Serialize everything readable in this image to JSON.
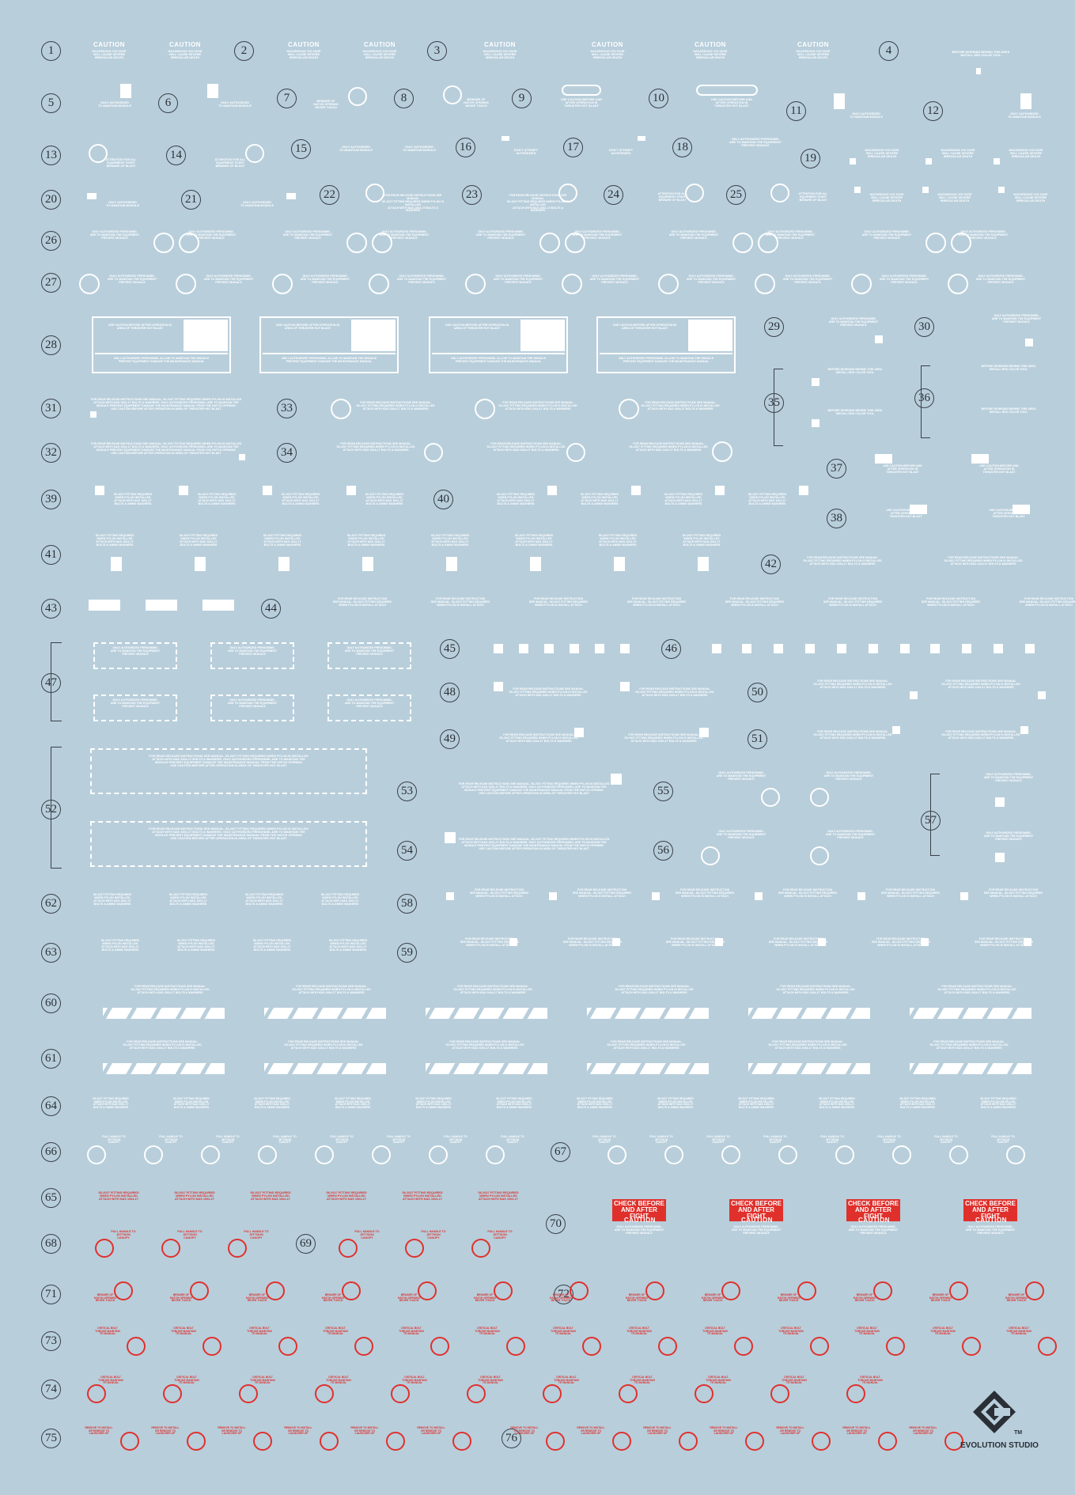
{
  "sheet": {
    "background": "#b8cedb",
    "print_color": "#ffffff",
    "red_color": "#e0302c",
    "ink_color": "#2a2f35"
  },
  "numbers": [
    "1",
    "2",
    "3",
    "4",
    "5",
    "6",
    "7",
    "8",
    "9",
    "10",
    "11",
    "12",
    "13",
    "14",
    "15",
    "16",
    "17",
    "18",
    "19",
    "20",
    "21",
    "22",
    "23",
    "24",
    "25",
    "26",
    "27",
    "28",
    "29",
    "30",
    "31",
    "32",
    "33",
    "34",
    "35",
    "36",
    "37",
    "38",
    "39",
    "40",
    "41",
    "42",
    "43",
    "44",
    "45",
    "46",
    "47",
    "48",
    "49",
    "50",
    "51",
    "52",
    "53",
    "54",
    "55",
    "56",
    "57",
    "58",
    "59",
    "60",
    "61",
    "62",
    "63",
    "64",
    "65",
    "66",
    "67",
    "68",
    "69",
    "70",
    "71",
    "72",
    "73",
    "74",
    "75",
    "76"
  ],
  "texts": {
    "caution": "CAUTION",
    "hazard_voltage": "HAZARDOUS VOLTAGE\nWILL CAUSE SEVERE\nIRREGULAR DEATH",
    "only_authorized_short": "ONLY AUTHORIZED\nTO MAINTAIN MODULE",
    "dont_attempt": "DON'T ATTEMPT\nAUTHORIZED",
    "beware_hatch": "BEWARE OF\nHATCH OPENING\nNEVER TOUCH",
    "attention_staff": "ATTENTION FOR ALL\nEQUIPMENT STAFF\nBEWARE OF BLAST",
    "use_caution": "USE CAUTION BEFORE AND\nAFTER OPERATION IN\nTHRUSTER HOT BLAST",
    "only_authorized_long": "ONLY AUTHORIZED PERSONNEL\nARE TO MAINTAIN THE EQUIPMENT\nPREVENT MODULE",
    "before_working": "BEFORE WORKING BEHIND THIS AREA\nINSTALL RED COLOR TOOL",
    "refer_manual": "FOR REAR RELEASE INSTRUCTIONS SEE MANUAL\nS6-2027 FITTING REQUIRED WHEN PYLON IS INSTALLED\nATTACH WITH NAS 1004-1T BOLTS & WASHERS",
    "fitting_required": "S6-2027 FITTING REQUIRED\nWHEN PYLON INSTALLED\nATTACH WITH NAS 1004-1T\nBOLTS & AN960 WASHERS",
    "rear_release": "FOR REAR RELEASE INSTRUCTION\nSEE MANUAL. S6-2027 FITTING REQUIRED\nWHEN PYLON IS INSTALL ATTACH",
    "long_para": "FOR REAR RELEASE INSTRUCTIONS SEE MANUAL, S6-2027 FITTING REQUIRED WHEN PYLON IS INSTALLED\nATTACH WITH NAS 1004-1T BOLTS & WASHERS. ONLY AUTHORIZED PERSONNEL ARE TO MAINTAIN THE\nMODULE PREVENT EQUIPMENT DAMAGE THE MAINTENANCE MANUAL FROM THE HATCH OPENING\nUSE CAUTION BEFORE AFTER OPERATION IN AREA OF THRUSTER HOT BLAST",
    "pull_handle": "PULL HANDLE TO\nJETTISON\nCANOPY",
    "fitting_red": "S6-2027 FITTING REQUIRED\nWHEN PYLON INSTALLED\nATTACH WITH NAS 1004-1T",
    "check_before": "CHECK BEFORE AND\nAFTER FIGHT",
    "beware_red": "BEWARE OF\nHATCH OPENING\nNEVER TOUCH",
    "critical_bolt": "CRITICAL BOLT\nTORQUE MAINTAIN\nTO MANUAL",
    "remove_install": "REMOVE TO INSTALL\nOR REMOVE TO\nLAUNCHER UP",
    "panel_caution": "USE CAUTION BEFORE AFTER OPERATION IN\nAREA OF THRUSTER HOT BLAST",
    "panel_only": "ONLY AUTHORIZED PERSONNEL ALLOW TO MAINTAIN THE MODULE\nPREVENT EQUIPMENT DAMAGE THE MAINTENANCE MANUAL"
  },
  "brand": {
    "name": "EVOLUTION STUDIO",
    "tm": "TM"
  }
}
